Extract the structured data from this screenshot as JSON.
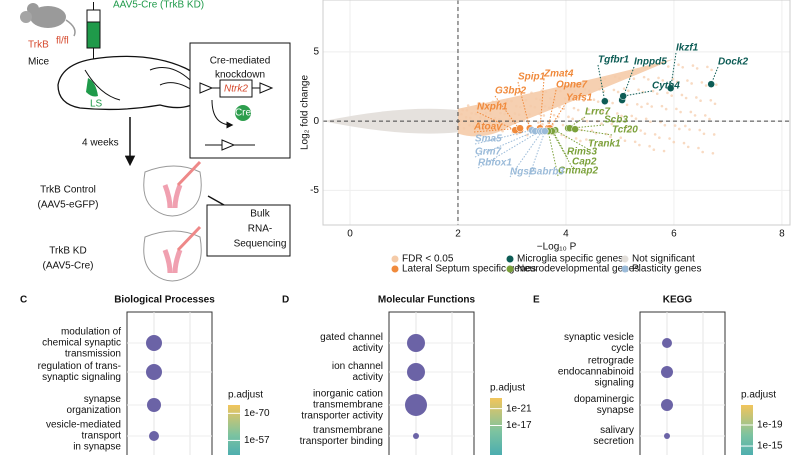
{
  "panel_a": {
    "virus": "AAV5-Cre (TrkB KD)",
    "strain": "TrkB",
    "strain_sup": "fl/fl",
    "animal": "Mice",
    "region": "LS",
    "box_title": [
      "Cre-mediated",
      "knockdown"
    ],
    "gene": "Ntrk2",
    "cre": "Cre",
    "duration": "4 weeks",
    "control": [
      "TrkB Control",
      "(AAV5-eGFP)"
    ],
    "kd": [
      "TrkB KD",
      "(AAV5-Cre)"
    ],
    "seq": [
      "Bulk",
      "RNA-",
      "Sequencing"
    ]
  },
  "chart_data": [
    {
      "type": "scatter",
      "xlabel": "−Log₁₀ P",
      "ylabel": "Log₂ fold change",
      "xlim": [
        -0.5,
        8.15
      ],
      "ylim": [
        -7.5,
        8.75
      ],
      "xticks": [
        0,
        2,
        4,
        6,
        8
      ],
      "yticks": [
        -5,
        0,
        5
      ],
      "vline": 2,
      "hline": 0,
      "grid": true,
      "series": [
        {
          "name": "FDR < 0.05",
          "color": "#f5cba8",
          "labels": [],
          "x": [],
          "values": []
        },
        {
          "name": "Lateral Septum specific genes",
          "color": "#f08a3c",
          "labels": [
            "Spip1",
            "Zmat4",
            "G3bp2",
            "Opne7",
            "Nxph1",
            "Yafs1",
            "Atoav"
          ],
          "x": [
            3.33,
            3.52,
            3.15,
            3.67,
            3.06,
            3.7,
            3.15
          ],
          "values": [
            -0.51,
            -0.51,
            -0.65,
            -0.51,
            -0.65,
            -0.51,
            -0.51
          ]
        },
        {
          "name": "Microglia specific genes",
          "color": "#0d5c55",
          "labels": [
            "Ikzf1",
            "Dock2",
            "Tgfbr1",
            "Inppd5",
            "Cyth4"
          ],
          "x": [
            5.94,
            6.69,
            4.72,
            5.04,
            5.06
          ],
          "values": [
            2.38,
            2.67,
            1.44,
            1.52,
            1.81
          ]
        },
        {
          "name": "Neurodevelopmental genes",
          "color": "#7ba13b",
          "labels": [
            "Lrrc7",
            "Scb3",
            "Tcf20",
            "Trank1",
            "Rims3",
            "Cap2",
            "Cntnap2"
          ],
          "x": [
            4.04,
            4.07,
            4.17,
            3.8,
            3.76,
            3.74,
            3.67
          ],
          "values": [
            -0.51,
            -0.51,
            -0.58,
            -0.65,
            -0.72,
            -0.72,
            -0.72
          ]
        },
        {
          "name": "Not significant",
          "color": "#e2ded9",
          "labels": [],
          "x": [],
          "values": []
        },
        {
          "name": "Plasticity genes",
          "color": "#9bbbd9",
          "labels": [
            "Sma5",
            "Grm7",
            "Rbfox1",
            "Ngs2",
            "Gabrb3"
          ],
          "x": [
            3.37,
            3.43,
            3.52,
            3.56,
            3.61
          ],
          "values": [
            -0.65,
            -0.72,
            -0.72,
            -0.72,
            -0.72
          ]
        }
      ]
    },
    {
      "type": "dot",
      "panel": "C",
      "title": "Biological Processes",
      "color": "#6b63a6",
      "categories": [
        [
          "modulation of",
          "chemical synaptic",
          "transmission"
        ],
        [
          "regulation of trans-",
          "synaptic signaling"
        ],
        [
          "synapse",
          "organization"
        ],
        [
          "vesicle-mediated",
          "transport",
          "in synapse"
        ]
      ],
      "values": [
        64,
        64,
        49,
        25
      ],
      "legend_title": "p.adjust",
      "colorlim": [
        1e-74,
        1e-50
      ],
      "colorticks": [
        1e-70,
        1e-57
      ]
    },
    {
      "type": "dot",
      "panel": "D",
      "title": "Molecular Functions",
      "color": "#6b63a6",
      "categories": [
        [
          "gated channel",
          "activity"
        ],
        [
          "ion channel",
          "activity"
        ],
        [
          "inorganic cation",
          "transmembrane",
          "transporter activity"
        ],
        [
          "transmembrane",
          "transporter binding"
        ]
      ],
      "values": [
        81,
        81,
        121,
        9
      ],
      "legend_title": "p.adjust",
      "colorlim": [
        3e-24,
        1e-10
      ],
      "colorticks": [
        1e-21,
        1e-17
      ]
    },
    {
      "type": "dot",
      "panel": "E",
      "title": "KEGG",
      "color": "#6b63a6",
      "categories": [
        [
          "synaptic vesicle",
          "cycle"
        ],
        [
          "retrograde",
          "endocannabinoid",
          "signaling"
        ],
        [
          "dopaminergic",
          "synapse"
        ],
        [
          "salivary",
          "secretion"
        ]
      ],
      "values": [
        25,
        36,
        36,
        9
      ],
      "legend_title": "p.adjust",
      "colorlim": [
        1.6e-23,
        5e-14
      ],
      "colorticks": [
        1e-19,
        1e-15
      ]
    }
  ]
}
